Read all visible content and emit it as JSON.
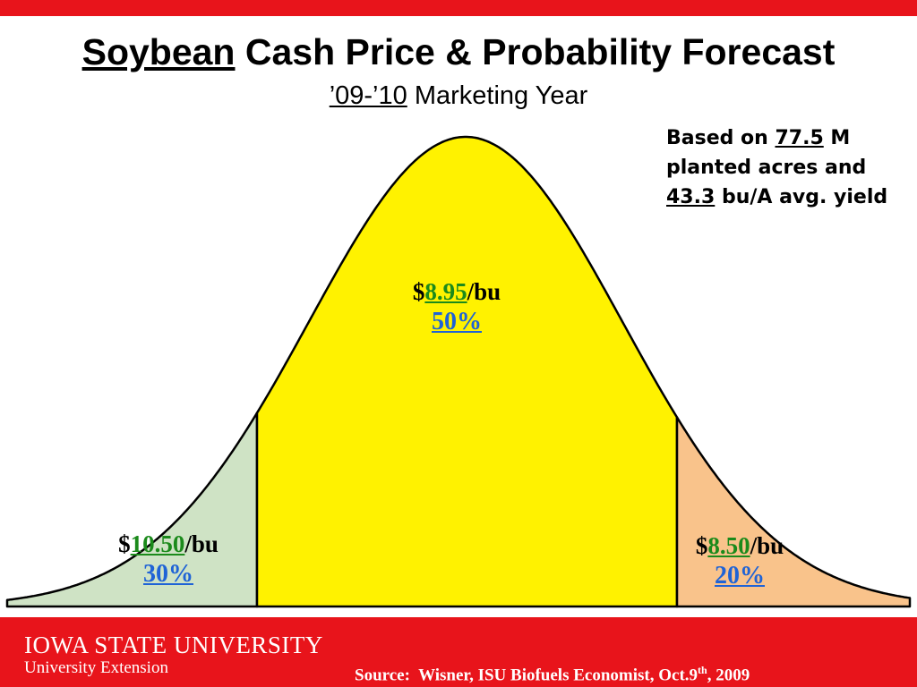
{
  "header": {
    "title_underlined": "Soybean",
    "title_rest": " Cash Price & Probability Forecast",
    "subtitle_underlined": "’09-’10",
    "subtitle_rest": " Marketing Year"
  },
  "note": {
    "part1": "Based on ",
    "acres": "77.5",
    "part2": " M planted acres and ",
    "yield": "43.3",
    "part3": " bu/A avg. yield"
  },
  "chart_data": {
    "type": "area",
    "distribution": "normal",
    "regions": [
      {
        "position": "left",
        "price_prefix": "$",
        "price": "10.50",
        "price_suffix": "/bu",
        "probability": "30%",
        "probability_value": 30,
        "color": "#cfe3c5"
      },
      {
        "position": "center",
        "price_prefix": "$",
        "price": "8.95",
        "price_suffix": "/bu",
        "probability": "50%",
        "probability_value": 50,
        "color": "#fff200"
      },
      {
        "position": "right",
        "price_prefix": "$",
        "price": "8.50",
        "price_suffix": "/bu",
        "probability": "20%",
        "probability_value": 20,
        "color": "#f9c38b"
      }
    ]
  },
  "footer": {
    "university": "IOWA STATE UNIVERSITY",
    "extension": "University Extension",
    "source_text": "Source:  Wisner, ISU Biofuels Economist, Oct.9",
    "source_sup": "th",
    "source_year": ", 2009"
  },
  "colors": {
    "accent_red": "#e8141b",
    "price_green": "#1b8a1b",
    "percent_blue": "#1f63d6"
  }
}
